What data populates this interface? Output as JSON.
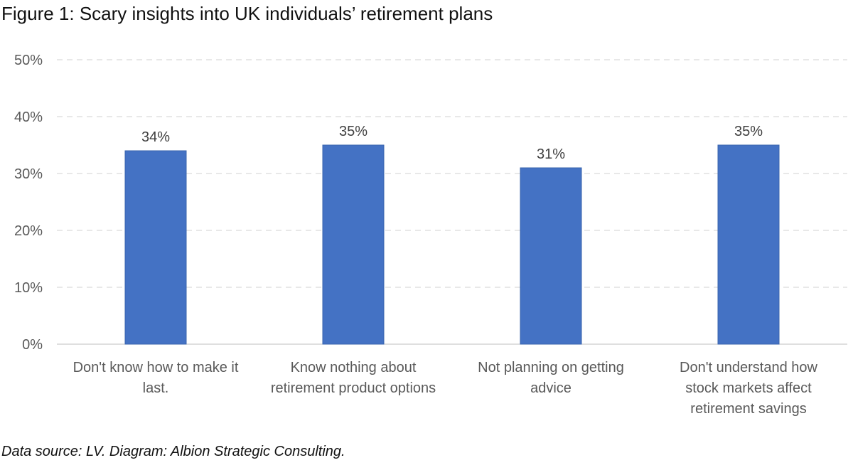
{
  "title": "Figure 1: Scary insights into UK individuals’ retirement plans",
  "source": "Data source: LV. Diagram: Albion Strategic Consulting.",
  "chart_data": {
    "type": "bar",
    "title": "Figure 1: Scary insights into UK individuals’ retirement plans",
    "categories": [
      [
        "Don't know how to make it",
        "last."
      ],
      [
        "Know nothing about",
        "retirement product options"
      ],
      [
        "Not planning on getting",
        "advice"
      ],
      [
        "Don't understand how",
        "stock markets affect",
        "retirement savings"
      ]
    ],
    "values": [
      34,
      35,
      31,
      35
    ],
    "data_labels": [
      "34%",
      "35%",
      "31%",
      "35%"
    ],
    "ylim": [
      0,
      50
    ],
    "yticks": [
      0,
      10,
      20,
      30,
      40,
      50
    ],
    "ytick_labels": [
      "0%",
      "10%",
      "20%",
      "30%",
      "40%",
      "50%"
    ],
    "grid": true,
    "bar_color": "#4472C4",
    "grid_color": "#D9D9D9"
  }
}
